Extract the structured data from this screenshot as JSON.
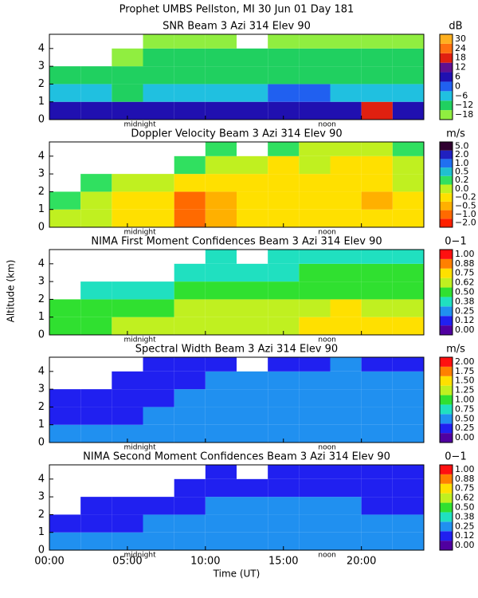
{
  "header": {
    "title": "Prophet  UMBS Pellston, MI  30 Jun 01 Day 181"
  },
  "ylabel": "Altitude (km)",
  "chart_data": [
    {
      "type": "heatmap",
      "title": "SNR Beam 3 Azi 314 Elev 90",
      "unit": "dB",
      "xbins": [
        0,
        2,
        4,
        6,
        8,
        10,
        12,
        14,
        16,
        18,
        20,
        22,
        24
      ],
      "ybins": [
        0,
        1,
        2,
        3,
        4,
        4.8
      ],
      "xlim": [
        0,
        24
      ],
      "ylim": [
        0,
        4.8
      ],
      "yticks": [
        0,
        1,
        2,
        3,
        4
      ],
      "values": [
        [
          6,
          6,
          6,
          6,
          6,
          6,
          6,
          6,
          6,
          6,
          18,
          6
        ],
        [
          -6,
          -6,
          -12,
          -6,
          -6,
          -6,
          -6,
          0,
          0,
          -6,
          -6,
          -6
        ],
        [
          -12,
          -12,
          -12,
          -12,
          -12,
          -12,
          -12,
          -12,
          -12,
          -12,
          -12,
          -12
        ],
        [
          null,
          null,
          -18,
          -12,
          -12,
          -12,
          -12,
          -12,
          -12,
          -12,
          -12,
          -12
        ],
        [
          null,
          null,
          null,
          -18,
          -18,
          -18,
          null,
          -18,
          -18,
          -18,
          -18,
          -18
        ]
      ],
      "cticks": [
        {
          "value": -18,
          "label": "−18"
        },
        {
          "value": -12,
          "label": "−12"
        },
        {
          "value": -6,
          "label": "−6"
        },
        0,
        6,
        12,
        18,
        24,
        30
      ],
      "colors": [
        "#90ee40",
        "#20d060",
        "#20c0e0",
        "#2060f0",
        "#2010b0",
        "#601090",
        "#e02010",
        "#ff7010",
        "#ffb020"
      ],
      "annotations": [
        {
          "text": "midnight",
          "x": 5.8
        },
        {
          "text": "noon",
          "x": 17.8
        }
      ]
    },
    {
      "type": "heatmap",
      "title": "Doppler Velocity Beam 3 Azi 314 Elev 90",
      "unit": "m/s",
      "xbins": [
        0,
        2,
        4,
        6,
        8,
        10,
        12,
        14,
        16,
        18,
        20,
        22,
        24
      ],
      "ybins": [
        0,
        1,
        2,
        3,
        4,
        4.8
      ],
      "xlim": [
        0,
        24
      ],
      "ylim": [
        0,
        4.8
      ],
      "yticks": [
        0,
        1,
        2,
        3,
        4
      ],
      "values": [
        [
          0,
          0,
          -0.2,
          -0.2,
          -1,
          -0.5,
          -0.2,
          -0.2,
          -0.2,
          -0.2,
          -0.2,
          -0.2
        ],
        [
          0.2,
          0,
          -0.2,
          -0.2,
          -1,
          -0.5,
          -0.2,
          -0.2,
          -0.2,
          -0.2,
          -0.5,
          -0.2
        ],
        [
          null,
          0.2,
          0,
          0,
          -0.2,
          -0.2,
          -0.2,
          -0.2,
          -0.2,
          -0.2,
          -0.2,
          0
        ],
        [
          null,
          null,
          null,
          null,
          0.2,
          0,
          0,
          -0.2,
          0,
          -0.2,
          -0.2,
          0
        ],
        [
          null,
          null,
          null,
          null,
          null,
          0.2,
          null,
          0.2,
          0,
          0,
          0,
          0.2
        ]
      ],
      "cticks": [
        {
          "value": -2,
          "label": "−2.0"
        },
        {
          "value": -1,
          "label": "−1.0"
        },
        {
          "value": -0.5,
          "label": "−0.5"
        },
        {
          "value": -0.2,
          "label": "−0.2"
        },
        {
          "value": 0,
          "label": "0.0"
        },
        0.2,
        0.5,
        {
          "value": 1,
          "label": "1.0"
        },
        {
          "value": 2,
          "label": "2.0"
        },
        {
          "value": 5,
          "label": "5.0"
        }
      ],
      "colors": [
        "#ff2000",
        "#ff6a00",
        "#ffb000",
        "#ffe000",
        "#c0f020",
        "#30e060",
        "#20c0d0",
        "#2070f0",
        "#2020c0",
        "#300030"
      ],
      "annotations": [
        {
          "text": "midnight",
          "x": 5.8
        },
        {
          "text": "noon",
          "x": 17.8
        }
      ]
    },
    {
      "type": "heatmap",
      "title": "NIMA First Moment Confidences Beam 3 Azi 314 Elev 90",
      "unit": "0−1",
      "xbins": [
        0,
        2,
        4,
        6,
        8,
        10,
        12,
        14,
        16,
        18,
        20,
        22,
        24
      ],
      "ybins": [
        0,
        1,
        2,
        3,
        4,
        4.8
      ],
      "xlim": [
        0,
        24
      ],
      "ylim": [
        0,
        4.8
      ],
      "yticks": [
        0,
        1,
        2,
        3,
        4
      ],
      "values": [
        [
          0.5,
          0.5,
          0.62,
          0.62,
          0.62,
          0.62,
          0.62,
          0.62,
          0.75,
          0.75,
          0.75,
          0.75
        ],
        [
          0.5,
          0.5,
          0.5,
          0.5,
          0.62,
          0.62,
          0.62,
          0.62,
          0.62,
          0.75,
          0.62,
          0.62
        ],
        [
          null,
          0.38,
          0.38,
          0.38,
          0.5,
          0.5,
          0.5,
          0.5,
          0.5,
          0.5,
          0.5,
          0.5
        ],
        [
          null,
          null,
          null,
          null,
          0.38,
          0.38,
          0.38,
          0.38,
          0.5,
          0.5,
          0.5,
          0.5
        ],
        [
          null,
          null,
          null,
          null,
          null,
          0.38,
          null,
          0.38,
          0.38,
          0.38,
          0.38,
          0.38
        ]
      ],
      "cticks": [
        {
          "value": 0,
          "label": "0.00"
        },
        0.12,
        0.25,
        0.38,
        {
          "value": 0.5,
          "label": "0.50"
        },
        0.62,
        0.75,
        0.88,
        {
          "value": 1,
          "label": "1.00"
        }
      ],
      "colors": [
        "#5000a0",
        "#2020f0",
        "#2090f0",
        "#20e0c0",
        "#30e030",
        "#c0f020",
        "#ffe000",
        "#ff8000",
        "#ff1010"
      ],
      "annotations": [
        {
          "text": "midnight",
          "x": 5.8
        },
        {
          "text": "noon",
          "x": 17.8
        }
      ]
    },
    {
      "type": "heatmap",
      "title": "Spectral Width Beam 3 Azi 314 Elev 90",
      "unit": "m/s",
      "xbins": [
        0,
        2,
        4,
        6,
        8,
        10,
        12,
        14,
        16,
        18,
        20,
        22,
        24
      ],
      "ybins": [
        0,
        1,
        2,
        3,
        4,
        4.8
      ],
      "xlim": [
        0,
        24
      ],
      "ylim": [
        0,
        4.8
      ],
      "yticks": [
        0,
        1,
        2,
        3,
        4
      ],
      "values": [
        [
          0.5,
          0.5,
          0.5,
          0.5,
          0.5,
          0.5,
          0.5,
          0.5,
          0.5,
          0.5,
          0.5,
          0.5
        ],
        [
          0.25,
          0.25,
          0.25,
          0.5,
          0.5,
          0.5,
          0.5,
          0.5,
          0.5,
          0.5,
          0.5,
          0.5
        ],
        [
          0.25,
          0.25,
          0.25,
          0.25,
          0.5,
          0.5,
          0.5,
          0.5,
          0.5,
          0.5,
          0.5,
          0.5
        ],
        [
          null,
          null,
          0.25,
          0.25,
          0.25,
          0.5,
          0.5,
          0.5,
          0.5,
          0.5,
          0.5,
          0.5
        ],
        [
          null,
          null,
          null,
          0.25,
          0.25,
          0.25,
          null,
          0.25,
          0.25,
          0.5,
          0.25,
          0.25
        ]
      ],
      "cticks": [
        {
          "value": 0,
          "label": "0.00"
        },
        0.25,
        {
          "value": 0.5,
          "label": "0.50"
        },
        0.75,
        {
          "value": 1,
          "label": "1.00"
        },
        1.25,
        {
          "value": 1.5,
          "label": "1.50"
        },
        1.75,
        {
          "value": 2,
          "label": "2.00"
        }
      ],
      "colors": [
        "#5000a0",
        "#2020f0",
        "#2090f0",
        "#20e0c0",
        "#30e030",
        "#c0f020",
        "#ffe000",
        "#ff8000",
        "#ff1010"
      ],
      "annotations": [
        {
          "text": "midnight",
          "x": 5.8
        },
        {
          "text": "noon",
          "x": 17.8
        }
      ]
    },
    {
      "type": "heatmap",
      "title": "NIMA Second Moment Confidences Beam 3 Azi 314 Elev 90",
      "unit": "0−1",
      "xbins": [
        0,
        2,
        4,
        6,
        8,
        10,
        12,
        14,
        16,
        18,
        20,
        22,
        24
      ],
      "ybins": [
        0,
        1,
        2,
        3,
        4,
        4.8
      ],
      "xlim": [
        0,
        24
      ],
      "ylim": [
        0,
        4.8
      ],
      "yticks": [
        0,
        1,
        2,
        3,
        4
      ],
      "values": [
        [
          0.25,
          0.25,
          0.25,
          0.25,
          0.25,
          0.25,
          0.25,
          0.25,
          0.25,
          0.25,
          0.25,
          0.25
        ],
        [
          0.12,
          0.12,
          0.12,
          0.25,
          0.25,
          0.25,
          0.25,
          0.25,
          0.25,
          0.25,
          0.25,
          0.25
        ],
        [
          null,
          0.12,
          0.12,
          0.12,
          0.12,
          0.25,
          0.25,
          0.25,
          0.25,
          0.25,
          0.12,
          0.12
        ],
        [
          null,
          null,
          null,
          null,
          0.12,
          0.12,
          0.12,
          0.12,
          0.12,
          0.12,
          0.12,
          0.12
        ],
        [
          null,
          null,
          null,
          null,
          null,
          0.12,
          null,
          0.12,
          0.12,
          0.12,
          0.12,
          0.12
        ]
      ],
      "cticks": [
        {
          "value": 0,
          "label": "0.00"
        },
        0.12,
        0.25,
        0.38,
        {
          "value": 0.5,
          "label": "0.50"
        },
        0.62,
        0.75,
        0.88,
        {
          "value": 1,
          "label": "1.00"
        }
      ],
      "colors": [
        "#5000a0",
        "#2020f0",
        "#2090f0",
        "#20e0c0",
        "#30e030",
        "#c0f020",
        "#ffe000",
        "#ff8000",
        "#ff1010"
      ],
      "annotations": [
        {
          "text": "midnight",
          "x": 5.8
        },
        {
          "text": "noon",
          "x": 17.8
        }
      ],
      "xlabel": "Time (UT)",
      "xticks": [
        {
          "value": 0,
          "label": "00:00"
        },
        {
          "value": 5,
          "label": "05:00"
        },
        {
          "value": 10,
          "label": "10:00"
        },
        {
          "value": 15,
          "label": "15:00"
        },
        {
          "value": 20,
          "label": "20:00"
        }
      ]
    }
  ]
}
